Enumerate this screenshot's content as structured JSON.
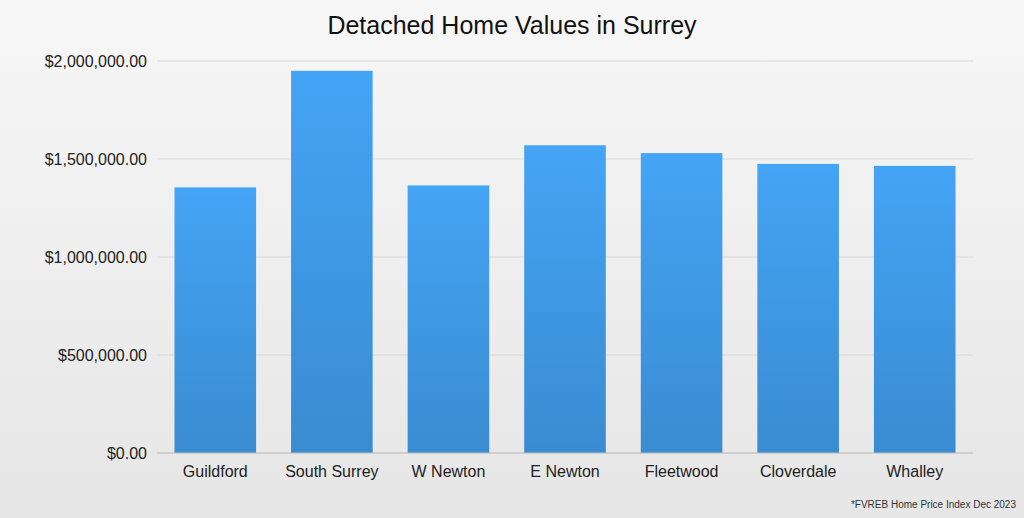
{
  "chart_data": {
    "type": "bar",
    "title": "Detached Home Values in Surrey",
    "categories": [
      "Guildford",
      "South Surrey",
      "W Newton",
      "E Newton",
      "Fleetwood",
      "Cloverdale",
      "Whalley"
    ],
    "values": [
      1355000,
      1950000,
      1365000,
      1570000,
      1530000,
      1475000,
      1465000
    ],
    "color": "#44a4f5",
    "ylim": [
      0,
      2000000
    ],
    "yticks": [
      {
        "value": 0,
        "label": "$0.00"
      },
      {
        "value": 500000,
        "label": "$500,000.00"
      },
      {
        "value": 1000000,
        "label": "$1,000,000.00"
      },
      {
        "value": 1500000,
        "label": "$1,500,000.00"
      },
      {
        "value": 2000000,
        "label": "$2,000,000.00"
      }
    ],
    "grid": true,
    "annotations": [
      "*FVREB Home Price Index Dec 2023"
    ]
  }
}
